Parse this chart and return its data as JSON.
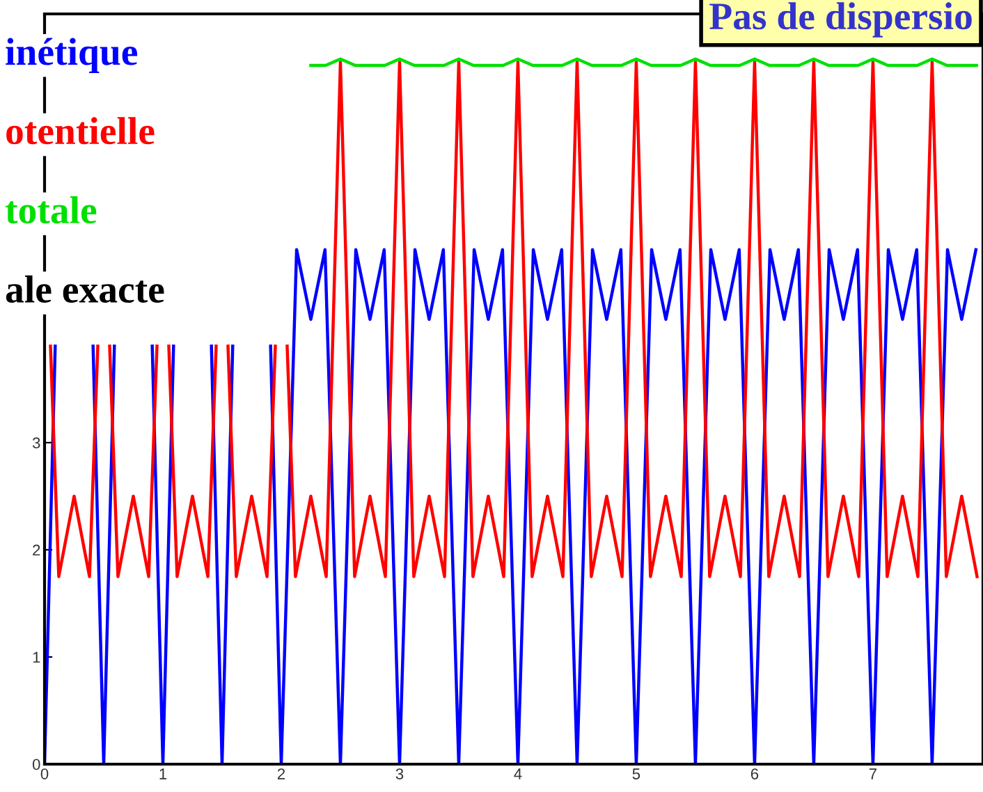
{
  "chart_data": {
    "type": "line",
    "title": "Pas de dispersio",
    "annotations": [
      "ale exacte"
    ],
    "xlim": [
      0,
      7.93
    ],
    "ylim": [
      0,
      7
    ],
    "xticks": [
      0,
      1,
      2,
      3,
      4,
      5,
      6,
      7
    ],
    "yticks": [
      0,
      1,
      2,
      3
    ],
    "legend": "top left",
    "grid": false,
    "marker": "none",
    "line_style": "solid",
    "series": [
      {
        "name": "inétique",
        "color": "#0000ff",
        "x": [
          0,
          0.09,
          0.25,
          0.41,
          0.5,
          0.59,
          0.75,
          0.91,
          1,
          1.09,
          1.25,
          1.41,
          1.5,
          1.59,
          1.75,
          1.91,
          2,
          2.13,
          2.25,
          2.37,
          2.5,
          2.63,
          2.75,
          2.87,
          3,
          3.13,
          3.25,
          3.37,
          3.5,
          3.63,
          3.75,
          3.87,
          4,
          4.13,
          4.25,
          4.37,
          4.5,
          4.63,
          4.75,
          4.87,
          5,
          5.13,
          5.25,
          5.37,
          5.5,
          5.63,
          5.75,
          5.87,
          6,
          6.13,
          6.25,
          6.37,
          6.5,
          6.63,
          6.75,
          6.87,
          7,
          7.13,
          7.25,
          7.37,
          7.5,
          7.63,
          7.75,
          7.87
        ],
        "values": [
          0,
          3.9,
          null,
          3.9,
          0,
          3.9,
          null,
          3.9,
          0,
          3.9,
          null,
          3.9,
          0,
          3.9,
          null,
          3.9,
          0,
          4.8,
          4.15,
          4.8,
          0,
          4.8,
          4.15,
          4.8,
          0,
          4.8,
          4.15,
          4.8,
          0,
          4.8,
          4.15,
          4.8,
          0,
          4.8,
          4.15,
          4.8,
          0,
          4.8,
          4.15,
          4.8,
          0,
          4.8,
          4.15,
          4.8,
          0,
          4.8,
          4.15,
          4.8,
          0,
          4.8,
          4.15,
          4.8,
          0,
          4.8,
          4.15,
          4.8,
          0,
          4.8,
          4.15,
          4.8,
          0,
          4.8,
          4.15,
          4.8
        ]
      },
      {
        "name": "otentielle",
        "color": "#ff0000",
        "x": [
          0.05,
          0.12,
          0.25,
          0.38,
          0.45,
          0.5,
          0.55,
          0.62,
          0.75,
          0.88,
          0.95,
          1,
          1.05,
          1.12,
          1.25,
          1.38,
          1.45,
          1.5,
          1.55,
          1.62,
          1.75,
          1.88,
          1.95,
          2,
          2.05,
          2.12,
          2.25,
          2.38,
          2.5,
          2.62,
          2.75,
          2.88,
          3,
          3.12,
          3.25,
          3.38,
          3.5,
          3.62,
          3.75,
          3.88,
          4,
          4.12,
          4.25,
          4.38,
          4.5,
          4.62,
          4.75,
          4.88,
          5,
          5.12,
          5.25,
          5.38,
          5.5,
          5.62,
          5.75,
          5.88,
          6,
          6.12,
          6.25,
          6.38,
          6.5,
          6.62,
          6.75,
          6.88,
          7,
          7.12,
          7.25,
          7.38,
          7.5,
          7.62,
          7.75,
          7.88
        ],
        "values": [
          3.9,
          1.75,
          2.5,
          1.75,
          3.9,
          null,
          3.9,
          1.75,
          2.5,
          1.75,
          3.9,
          null,
          3.9,
          1.75,
          2.5,
          1.75,
          3.9,
          null,
          3.9,
          1.75,
          2.5,
          1.75,
          3.9,
          null,
          3.9,
          1.75,
          2.5,
          1.75,
          6.55,
          1.75,
          2.5,
          1.75,
          6.55,
          1.75,
          2.5,
          1.75,
          6.55,
          1.75,
          2.5,
          1.75,
          6.55,
          1.75,
          2.5,
          1.75,
          6.55,
          1.75,
          2.5,
          1.75,
          6.55,
          1.75,
          2.5,
          1.75,
          6.55,
          1.75,
          2.5,
          1.75,
          6.55,
          1.75,
          2.5,
          1.75,
          6.55,
          1.75,
          2.5,
          1.75,
          6.55,
          1.75,
          2.5,
          1.75,
          6.55,
          1.75,
          2.5,
          1.75
        ]
      },
      {
        "name": "totale",
        "color": "#00e000",
        "x": [
          2.25,
          2.375,
          2.5,
          2.625,
          2.75,
          2.875,
          3,
          3.125,
          3.25,
          3.375,
          3.5,
          3.625,
          3.75,
          3.875,
          4,
          4.125,
          4.25,
          4.375,
          4.5,
          4.625,
          4.75,
          4.875,
          5,
          5.125,
          5.25,
          5.375,
          5.5,
          5.625,
          5.75,
          5.875,
          6,
          6.125,
          6.25,
          6.375,
          6.5,
          6.625,
          6.75,
          6.875,
          7,
          7.125,
          7.25,
          7.375,
          7.5,
          7.625,
          7.75,
          7.875
        ],
        "values": [
          6.52,
          6.52,
          6.58,
          6.52,
          6.52,
          6.52,
          6.58,
          6.52,
          6.52,
          6.52,
          6.58,
          6.52,
          6.52,
          6.52,
          6.58,
          6.52,
          6.52,
          6.52,
          6.58,
          6.52,
          6.52,
          6.52,
          6.58,
          6.52,
          6.52,
          6.52,
          6.58,
          6.52,
          6.52,
          6.52,
          6.58,
          6.52,
          6.52,
          6.52,
          6.58,
          6.52,
          6.52,
          6.52,
          6.58,
          6.52,
          6.52,
          6.52,
          6.58,
          6.52,
          6.52,
          6.52
        ]
      }
    ]
  }
}
